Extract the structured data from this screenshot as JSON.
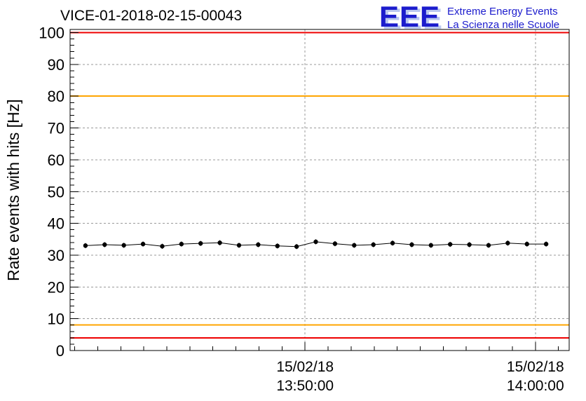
{
  "header": {
    "title": "VICE-01-2018-02-15-00043",
    "logo": {
      "acronym": "EEE",
      "line1": "Extreme Energy Events",
      "line2": "La Scienza nelle Scuole",
      "color": "#1c1ccd",
      "shadow_color": "#b9c7ef"
    }
  },
  "chart_data": {
    "type": "line",
    "title": "VICE-01-2018-02-15-00043",
    "xlabel": "",
    "ylabel": "Rate events with hits [Hz]",
    "ylim": [
      0,
      101
    ],
    "y_major_ticks": [
      0,
      10,
      20,
      30,
      40,
      50,
      60,
      70,
      80,
      90,
      100
    ],
    "y_minor_step": 2,
    "xlim_seconds": [
      0,
      1300
    ],
    "x_ticks": [
      {
        "t": 612,
        "label_date": "15/02/18",
        "label_time": "13:50:00"
      },
      {
        "t": 1212,
        "label_date": "15/02/18",
        "label_time": "14:00:00"
      }
    ],
    "x_minor_step": 60,
    "grid": true,
    "grid_color": "#999999",
    "legend": "none",
    "threshold_lines": [
      {
        "y": 100,
        "color": "#ee0000"
      },
      {
        "y": 80,
        "color": "#ffa500"
      },
      {
        "y": 8,
        "color": "#ffa500"
      },
      {
        "y": 4,
        "color": "#ee0000"
      }
    ],
    "series": [
      {
        "name": "rate-events-with-hits",
        "color": "#000000",
        "marker": "circle",
        "yerr": 0.8,
        "x_seconds": [
          40,
          90,
          140,
          190,
          240,
          290,
          340,
          390,
          440,
          490,
          540,
          590,
          640,
          690,
          740,
          790,
          840,
          890,
          940,
          990,
          1040,
          1090,
          1140,
          1190,
          1240
        ],
        "values": [
          33.0,
          33.3,
          33.1,
          33.5,
          32.8,
          33.5,
          33.7,
          33.9,
          33.1,
          33.3,
          32.9,
          32.7,
          34.2,
          33.6,
          33.1,
          33.3,
          33.8,
          33.3,
          33.1,
          33.4,
          33.3,
          33.1,
          33.8,
          33.5,
          33.5
        ]
      }
    ]
  }
}
